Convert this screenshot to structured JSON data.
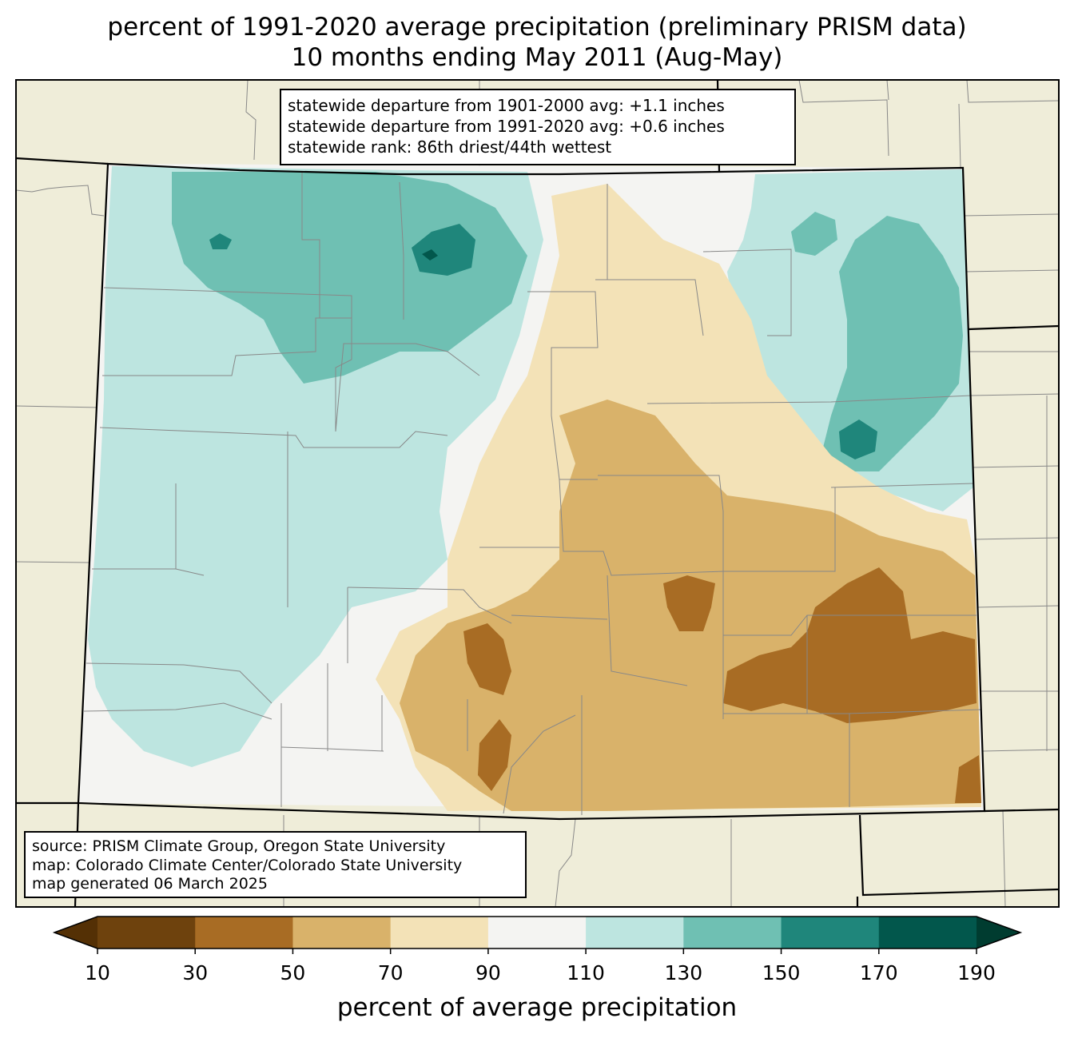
{
  "title": {
    "line1": "percent of 1991-2020 average precipitation (preliminary PRISM data)",
    "line2": "10 months ending May 2011 (Aug-May)"
  },
  "stats_box": {
    "line1": "statewide departure from 1901-2000 avg: +1.1 inches",
    "line2": "statewide departure from 1991-2020 avg: +0.6 inches",
    "line3": "statewide rank: 86th driest/44th wettest"
  },
  "source_box": {
    "line1": "source: PRISM Climate Group, Oregon State University",
    "line2": "map: Colorado Climate Center/Colorado State University",
    "line3": "map generated 06 March 2025"
  },
  "colorbar": {
    "label": "percent of average precipitation",
    "ticks": [
      "10",
      "30",
      "50",
      "70",
      "90",
      "110",
      "130",
      "150",
      "170",
      "190"
    ],
    "colors": [
      "#6e420d",
      "#a86c24",
      "#d9b26a",
      "#f3e2b7",
      "#f4f4f2",
      "#bde5e0",
      "#6fc0b3",
      "#1f867b",
      "#02574c"
    ],
    "under_color": "#543005",
    "over_color": "#003c30"
  },
  "background_color": "#efedd9"
}
